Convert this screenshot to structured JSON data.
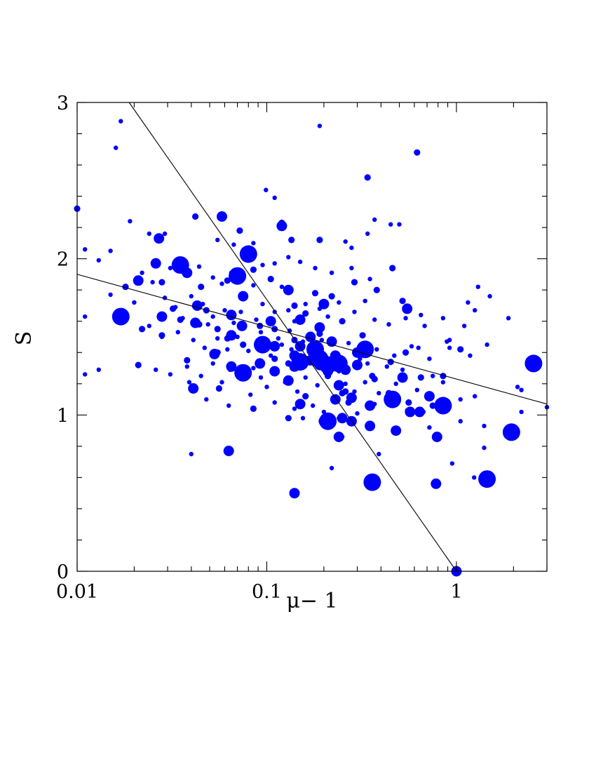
{
  "chart_data": {
    "type": "scatter",
    "title": "",
    "xlabel": "μ− 1",
    "ylabel": "S",
    "xscale": "log",
    "xlim": [
      0.01,
      3
    ],
    "ylim": [
      0,
      3
    ],
    "x_ticks": [
      {
        "value": 0.01,
        "label": "0.01"
      },
      {
        "value": 0.1,
        "label": "0.1"
      },
      {
        "value": 1,
        "label": "1"
      }
    ],
    "y_ticks": [
      {
        "value": 0,
        "label": "0"
      },
      {
        "value": 1,
        "label": "1"
      },
      {
        "value": 2,
        "label": "2"
      },
      {
        "value": 3,
        "label": "3"
      }
    ],
    "marker_color": "#0000ff",
    "line_color": "#000000",
    "lines": [
      {
        "x": [
          0.0188,
          1.0
        ],
        "y": [
          3.0,
          0.0
        ]
      },
      {
        "x": [
          0.01,
          3.0
        ],
        "y": [
          1.9,
          1.07
        ]
      }
    ],
    "series": [
      {
        "marker_size": "small",
        "points": [
          [
            0.017,
            2.88
          ],
          [
            0.016,
            2.71
          ],
          [
            0.19,
            2.85
          ],
          [
            0.099,
            2.44
          ],
          [
            0.11,
            2.39
          ],
          [
            0.37,
            2.25
          ],
          [
            0.45,
            2.22
          ],
          [
            0.5,
            2.22
          ],
          [
            0.019,
            2.24
          ],
          [
            0.024,
            2.16
          ],
          [
            0.029,
            2.16
          ],
          [
            0.26,
            2.11
          ],
          [
            0.28,
            2.07
          ],
          [
            0.34,
            2.16
          ],
          [
            0.015,
            2.05
          ],
          [
            0.011,
            2.06
          ],
          [
            0.013,
            1.99
          ],
          [
            0.022,
            1.91
          ],
          [
            0.025,
            1.85
          ],
          [
            0.031,
            1.94
          ],
          [
            0.038,
            1.9
          ],
          [
            0.044,
            1.95
          ],
          [
            0.052,
            1.88
          ],
          [
            0.058,
            1.84
          ],
          [
            0.065,
            1.91
          ],
          [
            0.085,
            1.83
          ],
          [
            0.095,
            1.96
          ],
          [
            0.11,
            1.97
          ],
          [
            0.13,
            2.01
          ],
          [
            0.15,
            1.98
          ],
          [
            0.18,
            1.94
          ],
          [
            0.22,
            1.91
          ],
          [
            0.28,
            1.94
          ],
          [
            0.35,
            1.87
          ],
          [
            0.015,
            1.77
          ],
          [
            0.02,
            1.72
          ],
          [
            0.029,
            1.75
          ],
          [
            0.033,
            1.69
          ],
          [
            0.04,
            1.76
          ],
          [
            0.046,
            1.71
          ],
          [
            0.052,
            1.63
          ],
          [
            0.06,
            1.67
          ],
          [
            0.067,
            1.59
          ],
          [
            0.073,
            1.66
          ],
          [
            0.088,
            1.61
          ],
          [
            0.095,
            1.71
          ],
          [
            0.11,
            1.66
          ],
          [
            0.13,
            1.67
          ],
          [
            0.14,
            1.6
          ],
          [
            0.16,
            1.71
          ],
          [
            0.19,
            1.68
          ],
          [
            0.21,
            1.63
          ],
          [
            0.24,
            1.72
          ],
          [
            0.29,
            1.66
          ],
          [
            0.33,
            1.73
          ],
          [
            0.37,
            1.61
          ],
          [
            0.44,
            1.58
          ],
          [
            0.54,
            1.62
          ],
          [
            0.65,
            1.64
          ],
          [
            0.85,
            1.62
          ],
          [
            1.1,
            1.57
          ],
          [
            1.25,
            1.67
          ],
          [
            1.5,
            1.76
          ],
          [
            1.3,
            1.82
          ],
          [
            1.15,
            1.72
          ],
          [
            1.88,
            1.62
          ],
          [
            0.011,
            1.63
          ],
          [
            0.024,
            1.57
          ],
          [
            0.028,
            1.5
          ],
          [
            0.034,
            1.53
          ],
          [
            0.041,
            1.48
          ],
          [
            0.047,
            1.43
          ],
          [
            0.055,
            1.49
          ],
          [
            0.062,
            1.42
          ],
          [
            0.07,
            1.5
          ],
          [
            0.08,
            1.41
          ],
          [
            0.093,
            1.53
          ],
          [
            0.105,
            1.38
          ],
          [
            0.12,
            1.45
          ],
          [
            0.135,
            1.42
          ],
          [
            0.155,
            1.47
          ],
          [
            0.175,
            1.39
          ],
          [
            0.195,
            1.48
          ],
          [
            0.27,
            1.46
          ],
          [
            0.31,
            1.36
          ],
          [
            0.38,
            1.42
          ],
          [
            0.47,
            1.38
          ],
          [
            0.58,
            1.44
          ],
          [
            0.72,
            1.36
          ],
          [
            0.92,
            1.43
          ],
          [
            1.18,
            1.38
          ],
          [
            1.45,
            1.45
          ],
          [
            0.011,
            1.26
          ],
          [
            0.013,
            1.29
          ],
          [
            0.026,
            1.29
          ],
          [
            0.031,
            1.26
          ],
          [
            0.038,
            1.31
          ],
          [
            0.045,
            1.25
          ],
          [
            0.052,
            1.33
          ],
          [
            0.058,
            1.21
          ],
          [
            0.064,
            1.29
          ],
          [
            0.085,
            1.3
          ],
          [
            0.093,
            1.24
          ],
          [
            0.1,
            1.18
          ],
          [
            0.125,
            1.21
          ],
          [
            0.145,
            1.15
          ],
          [
            0.16,
            1.24
          ],
          [
            0.185,
            1.19
          ],
          [
            0.26,
            1.2
          ],
          [
            0.29,
            1.15
          ],
          [
            0.33,
            1.21
          ],
          [
            0.39,
            1.14
          ],
          [
            0.48,
            1.2
          ],
          [
            0.62,
            1.16
          ],
          [
            0.85,
            1.21
          ],
          [
            1.05,
            1.1
          ],
          [
            1.25,
            1.12
          ],
          [
            2.1,
            1.18
          ],
          [
            2.2,
            1.16
          ],
          [
            3.0,
            1.05
          ],
          [
            0.039,
            1.21
          ],
          [
            0.048,
            1.1
          ],
          [
            0.063,
            1.06
          ],
          [
            0.082,
            1.13
          ],
          [
            0.11,
            1.08
          ],
          [
            0.14,
            1.04
          ],
          [
            0.155,
            0.98
          ],
          [
            0.175,
            1.06
          ],
          [
            0.2,
            1.02
          ],
          [
            0.24,
            0.98
          ],
          [
            0.3,
            1.01
          ],
          [
            0.37,
            1.07
          ],
          [
            0.55,
            1.03
          ],
          [
            0.72,
            0.92
          ],
          [
            0.78,
            0.87
          ],
          [
            1.05,
            0.96
          ],
          [
            1.4,
            0.93
          ],
          [
            0.25,
            0.86
          ],
          [
            0.22,
            0.66
          ],
          [
            0.39,
            0.75
          ],
          [
            0.95,
            0.69
          ],
          [
            1.4,
            0.79
          ],
          [
            2.2,
            1.02
          ],
          [
            0.04,
            0.75
          ],
          [
            0.75,
            1.25
          ],
          [
            0.63,
            1.43
          ],
          [
            0.89,
            1.47
          ],
          [
            0.68,
            1.57
          ],
          [
            0.92,
            1.48
          ],
          [
            1.24,
            0.6
          ],
          [
            0.055,
            2.12
          ],
          [
            0.067,
            2.09
          ],
          [
            0.036,
            1.62
          ],
          [
            0.049,
            1.58
          ],
          [
            0.115,
            1.49
          ],
          [
            0.132,
            1.54
          ],
          [
            0.43,
            1.31
          ],
          [
            0.52,
            1.29
          ],
          [
            0.12,
            1.82
          ],
          [
            0.085,
            2.1
          ],
          [
            0.24,
            1.28
          ],
          [
            0.34,
            1.33
          ],
          [
            0.67,
            1.02
          ]
        ]
      },
      {
        "marker_size": "medium",
        "points": [
          [
            0.042,
            2.27
          ],
          [
            0.072,
            2.18
          ],
          [
            0.135,
            2.12
          ],
          [
            0.19,
            2.12
          ],
          [
            0.34,
            2.52
          ],
          [
            0.62,
            2.68
          ],
          [
            0.46,
            1.94
          ],
          [
            0.01,
            2.32
          ],
          [
            0.12,
            2.23
          ],
          [
            0.021,
            1.86
          ],
          [
            0.018,
            1.82
          ],
          [
            0.028,
            1.85
          ],
          [
            0.045,
            1.82
          ],
          [
            0.062,
            1.86
          ],
          [
            0.085,
            1.93
          ],
          [
            0.105,
            1.87
          ],
          [
            0.14,
            1.7
          ],
          [
            0.18,
            1.78
          ],
          [
            0.22,
            1.76
          ],
          [
            0.29,
            1.85
          ],
          [
            0.38,
            1.8
          ],
          [
            0.52,
            1.73
          ],
          [
            0.022,
            1.55
          ],
          [
            0.035,
            1.61
          ],
          [
            0.044,
            1.58
          ],
          [
            0.055,
            1.55
          ],
          [
            0.075,
            1.45
          ],
          [
            0.11,
            1.55
          ],
          [
            0.14,
            1.48
          ],
          [
            0.17,
            1.44
          ],
          [
            0.25,
            1.6
          ],
          [
            0.32,
            1.51
          ],
          [
            0.45,
            1.34
          ],
          [
            0.54,
            1.4
          ],
          [
            0.65,
            1.24
          ],
          [
            0.85,
            1.25
          ],
          [
            1.05,
            1.42
          ],
          [
            0.021,
            1.32
          ],
          [
            0.028,
            1.51
          ],
          [
            0.038,
            1.35
          ],
          [
            0.055,
            1.4
          ],
          [
            0.11,
            1.36
          ],
          [
            0.13,
            1.33
          ],
          [
            0.18,
            1.33
          ],
          [
            0.21,
            1.25
          ],
          [
            0.26,
            1.15
          ],
          [
            0.36,
            1.25
          ],
          [
            0.44,
            1.14
          ],
          [
            0.56,
            1.08
          ],
          [
            0.75,
            1.06
          ],
          [
            0.85,
            1.04
          ],
          [
            0.16,
            1.12
          ],
          [
            0.13,
            0.98
          ],
          [
            0.085,
            1.04
          ],
          [
            0.032,
            1.68
          ],
          [
            0.048,
            1.67
          ],
          [
            0.062,
            1.49
          ],
          [
            0.092,
            1.57
          ],
          [
            0.19,
            1.52
          ],
          [
            0.27,
            1.08
          ],
          [
            0.37,
            1.23
          ],
          [
            0.056,
            1.17
          ],
          [
            0.16,
            1.65
          ],
          [
            0.25,
            1.14
          ]
        ]
      },
      {
        "marker_size": "large",
        "points": [
          [
            0.027,
            2.13
          ],
          [
            0.058,
            2.27
          ],
          [
            0.12,
            2.21
          ],
          [
            0.082,
            2.03
          ],
          [
            0.068,
            1.88
          ],
          [
            0.075,
            1.76
          ],
          [
            0.13,
            1.8
          ],
          [
            0.2,
            1.71
          ],
          [
            0.021,
            1.86
          ],
          [
            0.028,
            1.63
          ],
          [
            0.043,
            1.7
          ],
          [
            0.065,
            1.64
          ],
          [
            0.074,
            1.57
          ],
          [
            0.105,
            1.6
          ],
          [
            0.15,
            1.61
          ],
          [
            0.17,
            1.5
          ],
          [
            0.22,
            1.47
          ],
          [
            0.32,
            1.42
          ],
          [
            0.55,
            1.68
          ],
          [
            0.042,
            1.59
          ],
          [
            0.065,
            1.51
          ],
          [
            0.11,
            1.44
          ],
          [
            0.14,
            1.38
          ],
          [
            0.17,
            1.35
          ],
          [
            0.21,
            1.28
          ],
          [
            0.19,
            1.32
          ],
          [
            0.23,
            1.38
          ],
          [
            0.3,
            1.32
          ],
          [
            0.26,
            1.29
          ],
          [
            0.14,
            1.31
          ],
          [
            0.13,
            1.22
          ],
          [
            0.11,
            1.28
          ],
          [
            0.065,
            1.31
          ],
          [
            0.053,
            1.39
          ],
          [
            0.092,
            1.33
          ],
          [
            0.041,
            1.17
          ],
          [
            0.15,
            1.44
          ],
          [
            0.24,
            1.19
          ],
          [
            0.28,
            1.11
          ],
          [
            0.52,
            1.24
          ],
          [
            0.35,
            1.06
          ],
          [
            0.57,
            1.02
          ],
          [
            0.72,
            1.12
          ],
          [
            0.23,
            1.1
          ],
          [
            0.15,
            1.07
          ],
          [
            0.2,
            0.96
          ],
          [
            0.25,
            0.98
          ],
          [
            0.28,
            0.96
          ],
          [
            0.35,
            0.93
          ],
          [
            0.48,
            0.9
          ],
          [
            0.24,
            0.86
          ],
          [
            0.64,
            1.02
          ],
          [
            0.79,
            0.86
          ],
          [
            0.063,
            0.77
          ],
          [
            0.14,
            0.5
          ],
          [
            0.78,
            0.56
          ],
          [
            1.0,
            0.0
          ],
          [
            0.3,
            1.4
          ],
          [
            0.19,
            1.56
          ],
          [
            0.038,
            1.91
          ],
          [
            0.026,
            1.97
          ]
        ]
      },
      {
        "marker_size": "xlarge",
        "points": [
          [
            0.017,
            1.63
          ],
          [
            0.035,
            1.96
          ],
          [
            0.075,
            1.27
          ],
          [
            0.095,
            1.45
          ],
          [
            0.08,
            2.03
          ],
          [
            0.07,
            1.89
          ],
          [
            0.18,
            1.42
          ],
          [
            0.19,
            1.36
          ],
          [
            0.21,
            1.32
          ],
          [
            0.24,
            1.33
          ],
          [
            0.46,
            1.1
          ],
          [
            0.85,
            1.06
          ],
          [
            1.95,
            0.89
          ],
          [
            2.55,
            1.33
          ],
          [
            0.36,
            0.57
          ],
          [
            1.45,
            0.59
          ],
          [
            0.21,
            0.96
          ],
          [
            0.33,
            1.42
          ],
          [
            0.15,
            1.34
          ]
        ]
      }
    ]
  }
}
